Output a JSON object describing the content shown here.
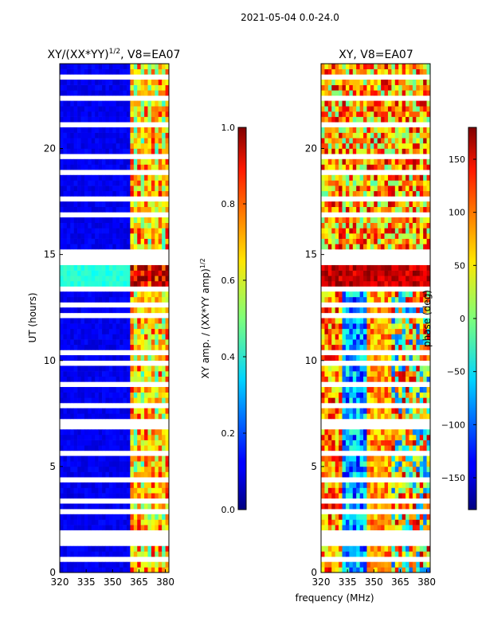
{
  "figure_title": "2021-05-04 0.0-24.0",
  "chart_data": [
    {
      "type": "heatmap",
      "title_main": "XY/(XX*YY)",
      "title_sup": "1/2",
      "title_tail": ", V8=EA07",
      "xlabel": "frequency (MHz)",
      "ylabel": "UT (hours)",
      "xlim": [
        320,
        382
      ],
      "ylim": [
        0,
        24
      ],
      "xticks": [
        320,
        335,
        350,
        365,
        380
      ],
      "yticks": [
        0,
        5,
        10,
        15,
        20
      ],
      "colorbar": {
        "label_main": "XY amp. / (XX*YY amp)",
        "label_sup": "1/2",
        "range": [
          0.0,
          1.0
        ],
        "ticks": [
          "0.0",
          "0.2",
          "0.4",
          "0.6",
          "0.8",
          "1.0"
        ],
        "tick_values": [
          0.0,
          0.2,
          0.4,
          0.6,
          0.8,
          1.0
        ]
      }
    },
    {
      "type": "heatmap",
      "title": "XY, V8=EA07",
      "xlabel": "frequency (MHz)",
      "ylabel": "",
      "xlim": [
        320,
        382
      ],
      "ylim": [
        0,
        24
      ],
      "xticks": [
        320,
        335,
        350,
        365,
        380
      ],
      "yticks": [
        0,
        5,
        10,
        15,
        20
      ],
      "colorbar": {
        "label": "phase (deg)",
        "range": [
          -180,
          180
        ],
        "ticks": [
          "150",
          "100",
          "50",
          "0",
          "−50",
          "−100",
          "−150"
        ],
        "tick_values": [
          150,
          100,
          50,
          0,
          -50,
          -100,
          -150
        ]
      }
    }
  ]
}
